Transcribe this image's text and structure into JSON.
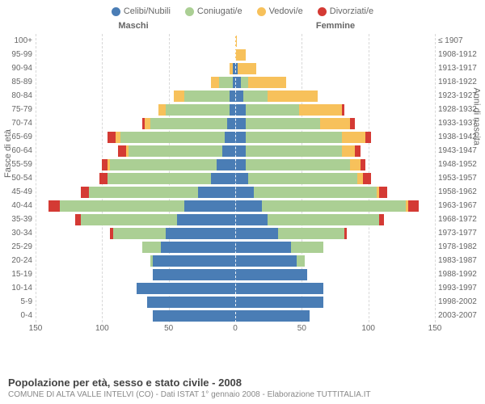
{
  "legend": [
    {
      "label": "Celibi/Nubili",
      "color": "#4a7db5"
    },
    {
      "label": "Coniugati/e",
      "color": "#abcf94"
    },
    {
      "label": "Vedovi/e",
      "color": "#f7c15b"
    },
    {
      "label": "Divorziati/e",
      "color": "#d43a34"
    }
  ],
  "header_male": "Maschi",
  "header_female": "Femmine",
  "ylabel_left": "Fasce di età",
  "ylabel_right": "Anni di nascita",
  "footer_title": "Popolazione per età, sesso e stato civile - 2008",
  "footer_sub": "COMUNE DI ALTA VALLE INTELVI (CO) - Dati ISTAT 1° gennaio 2008 - Elaborazione TUTTITALIA.IT",
  "xmax": 150,
  "xticks": [
    0,
    50,
    100,
    150
  ],
  "colors": {
    "celibi": "#4a7db5",
    "coniugati": "#abcf94",
    "vedovi": "#f7c15b",
    "divorziati": "#d43a34",
    "grid": "#d8d8d8",
    "text": "#666666"
  },
  "rows": [
    {
      "age": "100+",
      "birth": "≤ 1907",
      "m": {
        "c": 0,
        "co": 0,
        "v": 0,
        "d": 0
      },
      "f": {
        "c": 0,
        "co": 0,
        "v": 1,
        "d": 0
      }
    },
    {
      "age": "95-99",
      "birth": "1908-1912",
      "m": {
        "c": 0,
        "co": 0,
        "v": 0,
        "d": 0
      },
      "f": {
        "c": 0,
        "co": 0,
        "v": 8,
        "d": 0
      }
    },
    {
      "age": "90-94",
      "birth": "1913-1917",
      "m": {
        "c": 2,
        "co": 0,
        "v": 2,
        "d": 0
      },
      "f": {
        "c": 2,
        "co": 0,
        "v": 14,
        "d": 0
      }
    },
    {
      "age": "85-89",
      "birth": "1918-1922",
      "m": {
        "c": 2,
        "co": 10,
        "v": 6,
        "d": 0
      },
      "f": {
        "c": 4,
        "co": 6,
        "v": 28,
        "d": 0
      }
    },
    {
      "age": "80-84",
      "birth": "1923-1927",
      "m": {
        "c": 4,
        "co": 34,
        "v": 8,
        "d": 0
      },
      "f": {
        "c": 6,
        "co": 18,
        "v": 38,
        "d": 0
      }
    },
    {
      "age": "75-79",
      "birth": "1928-1932",
      "m": {
        "c": 4,
        "co": 48,
        "v": 6,
        "d": 0
      },
      "f": {
        "c": 8,
        "co": 40,
        "v": 32,
        "d": 2
      }
    },
    {
      "age": "70-74",
      "birth": "1933-1937",
      "m": {
        "c": 6,
        "co": 58,
        "v": 4,
        "d": 2
      },
      "f": {
        "c": 8,
        "co": 56,
        "v": 22,
        "d": 4
      }
    },
    {
      "age": "65-69",
      "birth": "1938-1942",
      "m": {
        "c": 8,
        "co": 78,
        "v": 4,
        "d": 6
      },
      "f": {
        "c": 8,
        "co": 72,
        "v": 18,
        "d": 4
      }
    },
    {
      "age": "60-64",
      "birth": "1943-1947",
      "m": {
        "c": 10,
        "co": 70,
        "v": 2,
        "d": 6
      },
      "f": {
        "c": 8,
        "co": 72,
        "v": 10,
        "d": 4
      }
    },
    {
      "age": "55-59",
      "birth": "1948-1952",
      "m": {
        "c": 14,
        "co": 80,
        "v": 2,
        "d": 4
      },
      "f": {
        "c": 8,
        "co": 78,
        "v": 8,
        "d": 4
      }
    },
    {
      "age": "50-54",
      "birth": "1953-1957",
      "m": {
        "c": 18,
        "co": 78,
        "v": 0,
        "d": 6
      },
      "f": {
        "c": 10,
        "co": 82,
        "v": 4,
        "d": 6
      }
    },
    {
      "age": "45-49",
      "birth": "1958-1962",
      "m": {
        "c": 28,
        "co": 82,
        "v": 0,
        "d": 6
      },
      "f": {
        "c": 14,
        "co": 92,
        "v": 2,
        "d": 6
      }
    },
    {
      "age": "40-44",
      "birth": "1963-1967",
      "m": {
        "c": 38,
        "co": 94,
        "v": 0,
        "d": 8
      },
      "f": {
        "c": 20,
        "co": 108,
        "v": 2,
        "d": 8
      }
    },
    {
      "age": "35-39",
      "birth": "1968-1972",
      "m": {
        "c": 44,
        "co": 72,
        "v": 0,
        "d": 4
      },
      "f": {
        "c": 24,
        "co": 84,
        "v": 0,
        "d": 4
      }
    },
    {
      "age": "30-34",
      "birth": "1973-1977",
      "m": {
        "c": 52,
        "co": 40,
        "v": 0,
        "d": 2
      },
      "f": {
        "c": 32,
        "co": 50,
        "v": 0,
        "d": 2
      }
    },
    {
      "age": "25-29",
      "birth": "1978-1982",
      "m": {
        "c": 56,
        "co": 14,
        "v": 0,
        "d": 0
      },
      "f": {
        "c": 42,
        "co": 24,
        "v": 0,
        "d": 0
      }
    },
    {
      "age": "20-24",
      "birth": "1983-1987",
      "m": {
        "c": 62,
        "co": 2,
        "v": 0,
        "d": 0
      },
      "f": {
        "c": 46,
        "co": 6,
        "v": 0,
        "d": 0
      }
    },
    {
      "age": "15-19",
      "birth": "1988-1992",
      "m": {
        "c": 62,
        "co": 0,
        "v": 0,
        "d": 0
      },
      "f": {
        "c": 54,
        "co": 0,
        "v": 0,
        "d": 0
      }
    },
    {
      "age": "10-14",
      "birth": "1993-1997",
      "m": {
        "c": 74,
        "co": 0,
        "v": 0,
        "d": 0
      },
      "f": {
        "c": 66,
        "co": 0,
        "v": 0,
        "d": 0
      }
    },
    {
      "age": "5-9",
      "birth": "1998-2002",
      "m": {
        "c": 66,
        "co": 0,
        "v": 0,
        "d": 0
      },
      "f": {
        "c": 66,
        "co": 0,
        "v": 0,
        "d": 0
      }
    },
    {
      "age": "0-4",
      "birth": "2003-2007",
      "m": {
        "c": 62,
        "co": 0,
        "v": 0,
        "d": 0
      },
      "f": {
        "c": 56,
        "co": 0,
        "v": 0,
        "d": 0
      }
    }
  ]
}
